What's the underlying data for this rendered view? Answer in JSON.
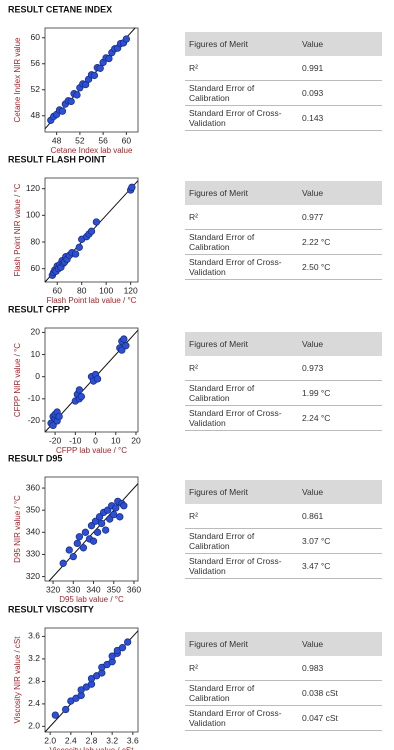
{
  "chart_data": [
    {
      "type": "scatter",
      "title": "RESULT CETANE INDEX",
      "xlabel": "Cetane Index lab value",
      "ylabel": "Cetane Index NIR value",
      "color": "#2b4fd6",
      "x": [
        47,
        47.5,
        48,
        48.5,
        49,
        49.5,
        50,
        50.5,
        51,
        51.5,
        52,
        52.5,
        53,
        53.5,
        54,
        54.5,
        55,
        55.5,
        56,
        56.5,
        57,
        57.5,
        58,
        58.5,
        59,
        59.5,
        60
      ],
      "y": [
        47.3,
        47.9,
        48.2,
        48.9,
        48.7,
        49.8,
        50.3,
        50.2,
        51.4,
        51.2,
        52.3,
        52.9,
        52.8,
        53.6,
        54.3,
        54.2,
        55.4,
        55.3,
        56.2,
        56.9,
        56.8,
        57.7,
        58.3,
        58.4,
        59.1,
        59.2,
        59.8
      ],
      "xlim": [
        46,
        62
      ],
      "xticks": [
        48,
        52,
        56,
        60
      ],
      "ylim": [
        45.5,
        61.5
      ],
      "yticks": [
        48,
        52,
        56,
        60
      ]
    },
    {
      "type": "scatter",
      "title": "RESULT FLASH POINT",
      "xlabel": "Flash Point lab value / °C",
      "ylabel": "Flash Point NIR value / °C",
      "color": "#2b4fd6",
      "x": [
        56,
        57,
        58,
        59,
        60,
        61,
        62,
        63,
        64,
        65,
        66,
        67,
        68,
        70,
        72,
        75,
        78,
        80,
        84,
        86,
        88,
        92,
        120,
        121
      ],
      "y": [
        55,
        57,
        59,
        58,
        62,
        60,
        63,
        61,
        66,
        64,
        65,
        69,
        67,
        70,
        72,
        71,
        76,
        82,
        84,
        86,
        88,
        95,
        119,
        121
      ],
      "xlim": [
        50,
        126
      ],
      "xticks": [
        60,
        80,
        100,
        120
      ],
      "ylim": [
        50,
        128
      ],
      "yticks": [
        60,
        80,
        100,
        120
      ]
    },
    {
      "type": "scatter",
      "title": "RESULT CFPP",
      "xlabel": "CFPP lab value / °C",
      "ylabel": "CFPP NIR value / °C",
      "color": "#2b4fd6",
      "x": [
        -22,
        -21,
        -21,
        -20,
        -20,
        -19,
        -19,
        -18,
        -10,
        -9,
        -8,
        -8,
        -7,
        -2,
        -1,
        0,
        1,
        12,
        13,
        13,
        14,
        15
      ],
      "y": [
        -21,
        -18,
        -22,
        -19,
        -17,
        -20,
        -16,
        -18,
        -11,
        -8,
        -10,
        -6,
        -9,
        0,
        -2,
        1,
        -1,
        13,
        16,
        12,
        17,
        14
      ],
      "xlim": [
        -25,
        21
      ],
      "xticks": [
        -20,
        -10,
        0,
        10,
        20
      ],
      "ylim": [
        -25,
        22
      ],
      "yticks": [
        -20,
        -10,
        0,
        10,
        20
      ]
    },
    {
      "type": "scatter",
      "title": "RESULT D95",
      "xlabel": "D95 lab value / °C",
      "ylabel": "D95 NIR value / °C",
      "color": "#2b4fd6",
      "x": [
        325,
        328,
        330,
        332,
        333,
        335,
        336,
        338,
        339,
        340,
        341,
        342,
        343,
        344,
        345,
        346,
        347,
        348,
        349,
        350,
        351,
        352,
        353,
        354,
        355
      ],
      "y": [
        326,
        332,
        329,
        335,
        338,
        333,
        340,
        337,
        343,
        336,
        345,
        340,
        347,
        344,
        349,
        341,
        350,
        346,
        352,
        348,
        351,
        354,
        347,
        353,
        352
      ],
      "xlim": [
        316,
        362
      ],
      "xticks": [
        320,
        330,
        340,
        350,
        360
      ],
      "ylim": [
        318,
        365
      ],
      "yticks": [
        320,
        330,
        340,
        350,
        360
      ]
    },
    {
      "type": "scatter",
      "title": "RESULT VISCOSITY",
      "xlabel": "Viscosity lab value / cSt",
      "ylabel": "Viscosity NIR value / cSt",
      "color": "#2b4fd6",
      "x": [
        2.1,
        2.3,
        2.4,
        2.5,
        2.6,
        2.6,
        2.7,
        2.8,
        2.8,
        2.9,
        3.0,
        3.0,
        3.1,
        3.2,
        3.2,
        3.3,
        3.3,
        3.4,
        3.5
      ],
      "y": [
        2.2,
        2.3,
        2.45,
        2.5,
        2.55,
        2.65,
        2.7,
        2.75,
        2.85,
        2.9,
        2.95,
        3.05,
        3.1,
        3.15,
        3.25,
        3.3,
        3.35,
        3.4,
        3.5
      ],
      "xlim": [
        1.9,
        3.7
      ],
      "xticks": [
        {
          "value": 2,
          "label": "2.0"
        },
        2.4,
        2.8,
        3.2,
        3.6
      ],
      "ylim": [
        1.9,
        3.75
      ],
      "yticks": [
        {
          "value": 2,
          "label": "2.0"
        },
        2.4,
        2.8,
        3.2,
        3.6
      ]
    }
  ],
  "tables": [
    {
      "header": [
        "Figures of Merit",
        "Value"
      ],
      "rows": [
        [
          "R²",
          "0.991"
        ],
        [
          "Standard Error of Calibration",
          "0.093"
        ],
        [
          "Standard Error of Cross-Validation",
          "0.143"
        ]
      ]
    },
    {
      "header": [
        "Figures of Merit",
        "Value"
      ],
      "rows": [
        [
          "R²",
          "0.977"
        ],
        [
          "Standard Error of Calibration",
          "2.22 °C"
        ],
        [
          "Standard Error of Cross-Validation",
          "2.50 °C"
        ]
      ]
    },
    {
      "header": [
        "Figures of Merit",
        "Value"
      ],
      "rows": [
        [
          "R²",
          "0.973"
        ],
        [
          "Standard Error of Calibration",
          "1.99 °C"
        ],
        [
          "Standard Error of Cross-Validation",
          "2.24 °C"
        ]
      ]
    },
    {
      "header": [
        "Figures of Merit",
        "Value"
      ],
      "rows": [
        [
          "R²",
          "0.861"
        ],
        [
          "Standard Error of Calibration",
          "3.07 °C"
        ],
        [
          "Standard Error of Cross-Validation",
          "3.47 °C"
        ]
      ]
    },
    {
      "header": [
        "Figures of Merit",
        "Value"
      ],
      "rows": [
        [
          "R²",
          "0.983"
        ],
        [
          "Standard Error of Calibration",
          "0.038 cSt"
        ],
        [
          "Standard Error of Cross-Validation",
          "0.047 cSt"
        ]
      ]
    }
  ]
}
